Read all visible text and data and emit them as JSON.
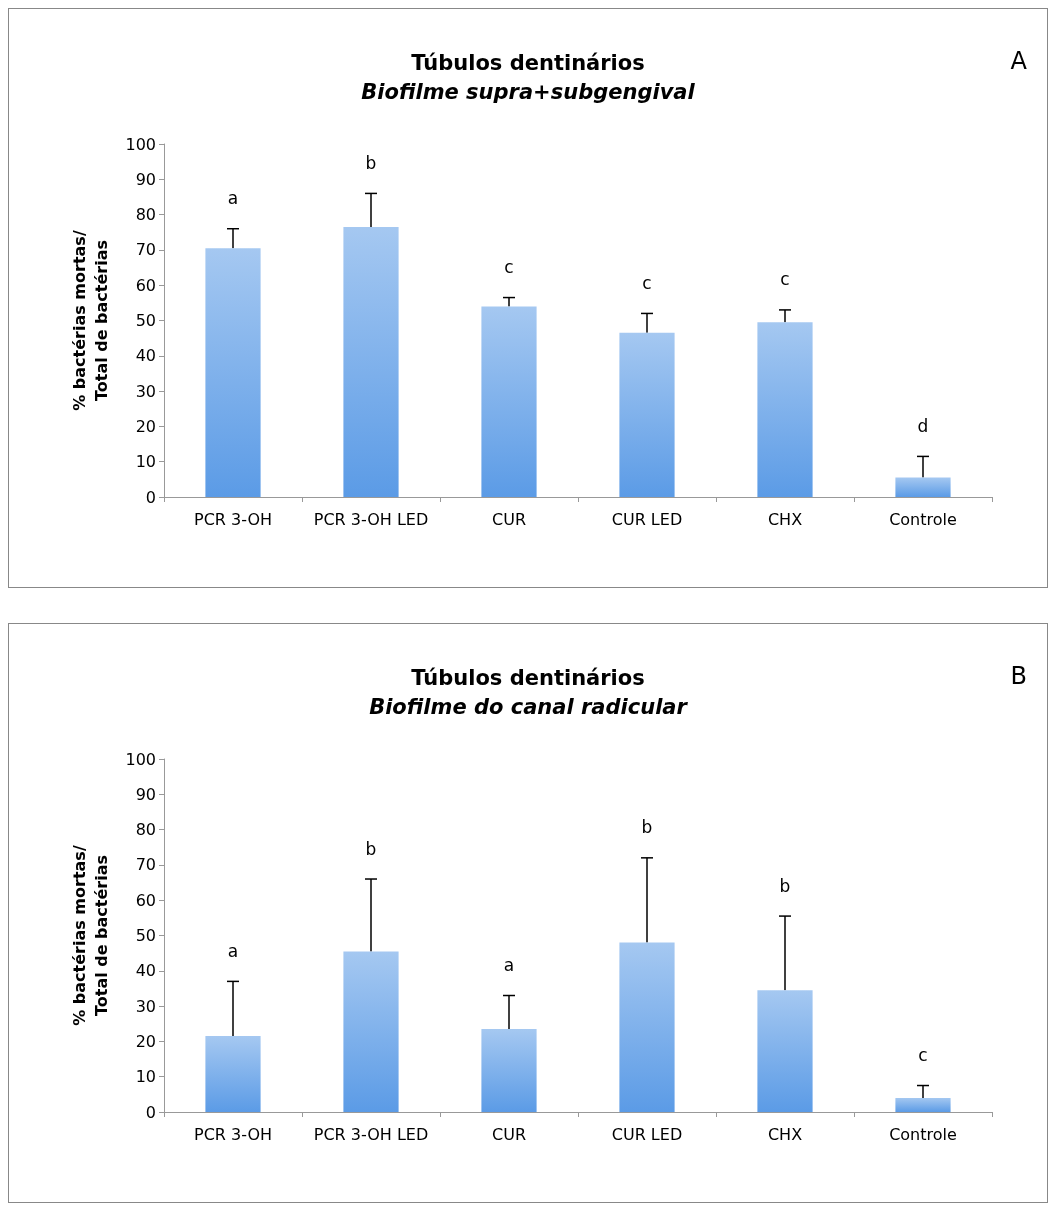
{
  "chart_data": [
    {
      "type": "bar",
      "title": "Túbulos dentinários",
      "subtitle": "Biofilme supra+subgengival",
      "ylabel": "% bactérias mortas/\nTotal de bactérias",
      "categories": [
        "PCR 3-OH",
        "PCR 3-OH LED",
        "CUR",
        "CUR LED",
        "CHX",
        "Controle"
      ],
      "values": [
        70.5,
        76.5,
        54,
        46.5,
        49.5,
        5.5
      ],
      "errors": [
        [
          70.5,
          76
        ],
        [
          76.5,
          86
        ],
        [
          54,
          56.5
        ],
        [
          46.5,
          52
        ],
        [
          49.5,
          53
        ],
        [
          5.5,
          11.5
        ]
      ],
      "color": "#5b9be6",
      "ylim": [
        0,
        100
      ],
      "yticks": [
        0,
        10,
        20,
        30,
        40,
        50,
        60,
        70,
        80,
        90,
        100
      ],
      "grid": false,
      "annotations": [
        "A",
        "a",
        "b",
        "c",
        "c",
        "c",
        "d"
      ]
    },
    {
      "type": "bar",
      "title": "Túbulos dentinários",
      "subtitle": "Biofilme do canal radicular",
      "ylabel": "% bactérias mortas/\nTotal de bactérias",
      "categories": [
        "PCR 3-OH",
        "PCR 3-OH LED",
        "CUR",
        "CUR LED",
        "CHX",
        "Controle"
      ],
      "values": [
        21.5,
        45.5,
        23.5,
        48,
        34.5,
        4
      ],
      "errors": [
        [
          21.5,
          37
        ],
        [
          45.5,
          66
        ],
        [
          23.5,
          33
        ],
        [
          48,
          72
        ],
        [
          34.5,
          55.5
        ],
        [
          4,
          7.5
        ]
      ],
      "color": "#5b9be6",
      "ylim": [
        0,
        100
      ],
      "yticks": [
        0,
        10,
        20,
        30,
        40,
        50,
        60,
        70,
        80,
        90,
        100
      ],
      "grid": false,
      "annotations": [
        "B",
        "a",
        "b",
        "a",
        "b",
        "b",
        "c"
      ]
    }
  ]
}
